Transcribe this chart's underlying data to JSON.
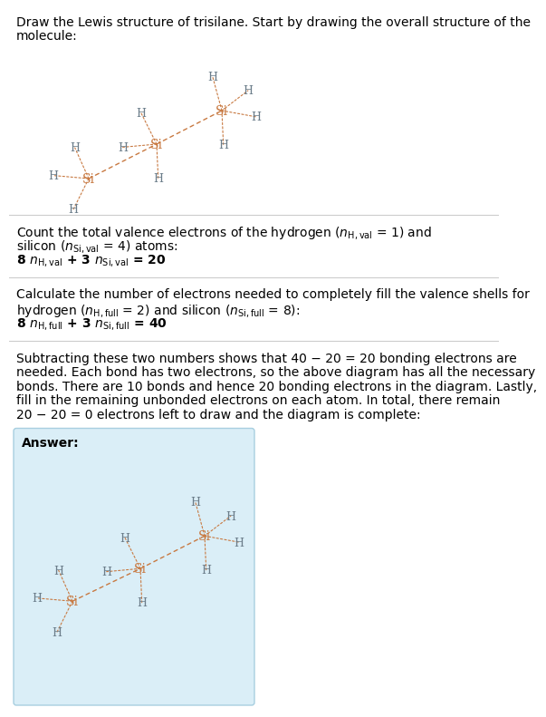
{
  "title_line1": "Draw the Lewis structure of trisilane. Start by drawing the overall structure of the",
  "title_line2": "molecule:",
  "si_color": "#c87941",
  "h_color": "#6b7d8a",
  "bond_color": "#c87941",
  "bg_color": "#ffffff",
  "answer_bg": "#daeef7",
  "answer_border": "#a8cfe0",
  "text_color": "#000000",
  "body_fs": 10,
  "mol_fs": 9,
  "answer_label": "Answer:",
  "sec1_lines": [
    "Count the total valence electrons of the hydrogen ($n_{\\mathrm{H,val}}$ = 1) and",
    "silicon ($n_{\\mathrm{Si,val}}$ = 4) atoms:",
    "8 $n_{\\mathrm{H,val}}$ + 3 $n_{\\mathrm{Si,val}}$ = 20"
  ],
  "sec2_lines": [
    "Calculate the number of electrons needed to completely fill the valence shells for",
    "hydrogen ($n_{\\mathrm{H,full}}$ = 2) and silicon ($n_{\\mathrm{Si,full}}$ = 8):",
    "8 $n_{\\mathrm{H,full}}$ + 3 $n_{\\mathrm{Si,full}}$ = 40"
  ],
  "sec3_lines": [
    "Subtracting these two numbers shows that 40 − 20 = 20 bonding electrons are",
    "needed. Each bond has two electrons, so the above diagram has all the necessary",
    "bonds. There are 10 bonds and hence 20 bonding electrons in the diagram. Lastly,",
    "fill in the remaining unbonded electrons on each atom. In total, there remain",
    "20 − 20 = 0 electrons left to draw and the diagram is complete:"
  ]
}
